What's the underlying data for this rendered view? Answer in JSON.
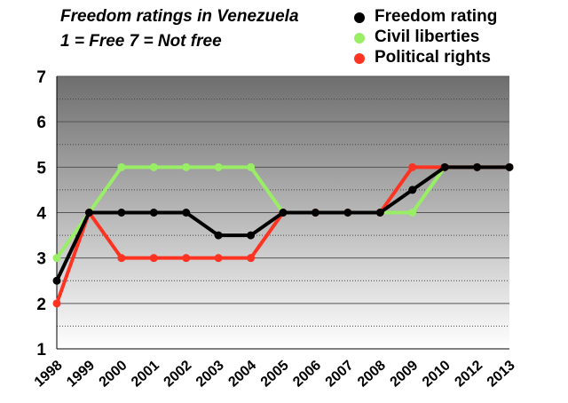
{
  "chart_data": {
    "type": "line",
    "title_lines": [
      "Freedom ratings in Venezuela",
      "1 = Free 7 = Not free"
    ],
    "categories": [
      "1998",
      "1999",
      "2000",
      "2001",
      "2002",
      "2003",
      "2004",
      "2005",
      "2006",
      "2007",
      "2008",
      "2009",
      "2010",
      "2012",
      "2013"
    ],
    "ylim": [
      1,
      7
    ],
    "yticks": [
      "1",
      "2",
      "3",
      "4",
      "5",
      "6",
      "7"
    ],
    "grid": true,
    "legend_position": "top-right",
    "xlabel": "",
    "ylabel": "",
    "series": [
      {
        "name": "Civil liberties",
        "color": "#99ee66",
        "values": [
          3,
          4,
          5,
          5,
          5,
          5,
          5,
          4,
          4,
          4,
          4,
          4,
          5,
          5,
          5
        ]
      },
      {
        "name": "Political rights",
        "color": "#ff3322",
        "values": [
          2,
          4,
          3,
          3,
          3,
          3,
          3,
          4,
          4,
          4,
          4,
          5,
          5,
          5,
          5
        ]
      },
      {
        "name": "Freedom rating",
        "color": "#000000",
        "values": [
          2.5,
          4,
          4,
          4,
          4,
          3.5,
          3.5,
          4,
          4,
          4,
          4,
          4.5,
          5,
          5,
          5
        ]
      }
    ],
    "legend_order": [
      "Freedom rating",
      "Civil liberties",
      "Political rights"
    ]
  }
}
